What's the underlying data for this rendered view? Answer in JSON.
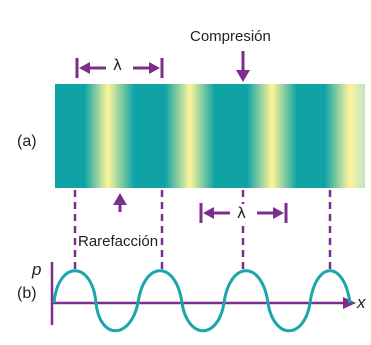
{
  "labels": {
    "compression": "Compresión",
    "rarefaction": "Rarefacción",
    "panel_a": "(a)",
    "panel_b": "(b)",
    "lambda_top": "λ",
    "lambda_bottom": "λ",
    "axis_y": "p",
    "axis_x": "x"
  },
  "colors": {
    "compression": "#0fa3a6",
    "rarefaction": "#fff59a",
    "arrow": "#7b2e8a",
    "curve": "#1aa6aa",
    "axis": "#7b2e8a"
  }
}
